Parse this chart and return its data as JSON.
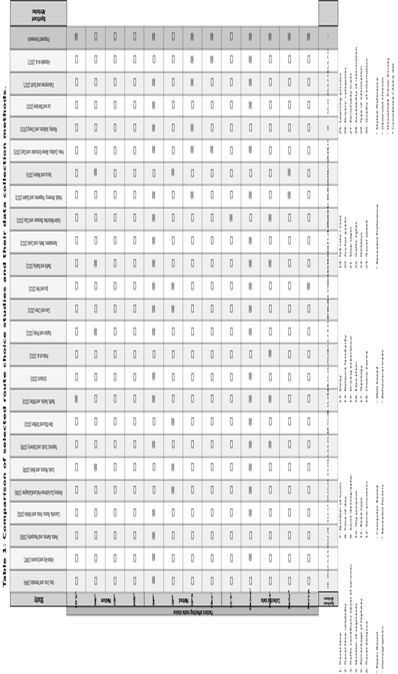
{
  "title": "Table 1: Comparison of selected route choice studies and their data collection methods.",
  "studies": [
    "Iida, Uno, and Yamada (1994)",
    "Abdel-Aty and Jovanis (1997)",
    "Peeta, Ramos, and Pasupathy (2000)",
    "Cascetta, Russo, Viola, and Vitetta (2002)",
    "Parkany,Du,Aultman-Hall,andGallagher (2006)",
    "Cools, Moons, and Wets (2009)",
    "Papinski, Scott, and Doherty (2009)",
    "Ben-Elia and Shiftan (2010)",
    "Tawfik, Rakha, and Miller (2010)",
    "Schlaich (2010)",
    "Prato et al. (2012)",
    "Kaplan and Prato (2012)",
    "Gan and Chen (2013)",
    "Jou and Yeh (2013)",
    "Tawfik and Rakha (2013)",
    "Ramaekers, Wets, and Cools (2013)",
    "Koller-Matschke, Bezauer, and Glas (2013)",
    "Habib, Morency, Trepamer, and Salem (2013)",
    "Vacca and Meloni (2014)",
    "Hess, Quddus, Rieser-Schussler, and Daly (2015)",
    "Manley, Addison, and Cheng (2015)",
    "Lai and Bierlaire (2015)",
    "Dalumpines and Scott (2017)",
    "Alizadeh et al. (2017)",
    "Proposed Framework"
  ],
  "row_headers": [
    "HTSᵇ",
    "PBᵇ",
    "CBᵇ",
    "WBᵇ",
    "RPᵇ",
    "SPᵇ",
    "GPS",
    "Obsᶜ",
    "CCSᶜ",
    "Demoᶜ",
    "Factᶜ",
    "Behrᵇ",
    "Percp"
  ],
  "row_groups": [
    {
      "name": "Medium",
      "rows": [
        0,
        1,
        2,
        3
      ]
    },
    {
      "name": "Method",
      "rows": [
        4,
        5,
        6,
        7
      ]
    },
    {
      "name": "Collected data",
      "rows": [
        8,
        9,
        10,
        11,
        12
      ]
    }
  ],
  "data": [
    [
      0,
      0,
      0,
      0,
      0,
      0,
      0,
      0,
      1,
      0,
      0,
      0,
      0,
      0,
      0,
      0,
      0,
      0,
      0,
      0,
      0,
      0,
      0,
      0,
      1
    ],
    [
      0,
      0,
      0,
      0,
      0,
      1,
      0,
      0,
      0,
      0,
      0,
      1,
      0,
      0,
      1,
      0,
      0,
      0,
      1,
      0,
      0,
      0,
      0,
      0,
      0
    ],
    [
      0,
      0,
      0,
      0,
      0,
      0,
      0,
      0,
      0,
      0,
      0,
      0,
      0,
      0,
      0,
      0,
      0,
      0,
      0,
      0,
      0,
      0,
      0,
      0,
      0
    ],
    [
      0,
      0,
      0,
      0,
      0,
      0,
      0,
      0,
      0,
      0,
      0,
      0,
      0,
      0,
      0,
      0,
      0,
      0,
      0,
      0,
      0,
      0,
      0,
      0,
      0
    ],
    [
      1,
      1,
      1,
      1,
      0,
      0,
      1,
      0,
      1,
      1,
      0,
      1,
      1,
      1,
      1,
      1,
      1,
      1,
      0,
      1,
      1,
      1,
      1,
      0,
      1
    ],
    [
      0,
      0,
      0,
      0,
      1,
      1,
      0,
      1,
      0,
      0,
      0,
      0,
      1,
      1,
      0,
      0,
      0,
      0,
      1,
      0,
      0,
      0,
      0,
      0,
      0
    ],
    [
      0,
      0,
      0,
      0,
      0,
      0,
      0,
      0,
      0,
      0,
      0,
      0,
      0,
      0,
      0,
      0,
      0,
      1,
      0,
      1,
      1,
      0,
      1,
      1,
      1
    ],
    [
      0,
      0,
      0,
      0,
      0,
      0,
      0,
      0,
      0,
      0,
      0,
      0,
      0,
      0,
      0,
      0,
      0,
      0,
      0,
      1,
      0,
      0,
      0,
      1,
      1
    ],
    [
      0,
      0,
      0,
      0,
      0,
      0,
      0,
      0,
      0,
      0,
      0,
      0,
      0,
      0,
      0,
      0,
      1,
      0,
      0,
      0,
      0,
      0,
      0,
      0,
      0
    ],
    [
      0,
      1,
      0,
      1,
      1,
      1,
      1,
      1,
      1,
      1,
      0,
      1,
      1,
      1,
      1,
      1,
      0,
      1,
      0,
      1,
      0,
      1,
      1,
      1,
      1
    ],
    [
      0,
      0,
      0,
      0,
      0,
      0,
      1,
      0,
      1,
      0,
      1,
      0,
      0,
      0,
      1,
      0,
      1,
      0,
      0,
      0,
      0,
      0,
      0,
      0,
      1
    ],
    [
      0,
      0,
      0,
      0,
      0,
      0,
      0,
      0,
      0,
      0,
      0,
      0,
      0,
      0,
      0,
      0,
      0,
      1,
      1,
      0,
      0,
      0,
      0,
      0,
      1
    ],
    [
      0,
      0,
      0,
      0,
      0,
      0,
      0,
      0,
      0,
      0,
      0,
      0,
      0,
      1,
      0,
      0,
      0,
      0,
      0,
      0,
      0,
      0,
      0,
      0,
      1
    ]
  ],
  "sig_attrs": [
    "28, 30",
    "1,2,3,4,5,6",
    "9,12,28",
    "1,12,17",
    "3,9,10,23",
    "1,9,10",
    "1,3,4,6,21,22",
    "1,9,10,25",
    "14,15,25,29",
    "1,6,9,15,24,25",
    "3,28",
    "1,5,6,7,9,13,27",
    "14,15,16",
    "1,5,6,8,10,12,18,19",
    "1,6,9,10,11,26,27",
    "8,9,10,11,28,29",
    "1,18,28,29",
    "1,5,9,12,15,22,23,24",
    "1,5,9,12,15,22,23,24",
    "1,6,11,19",
    "20",
    "5,6,22",
    "4,5,6,7,11",
    "1,5,6,7,11",
    "*"
  ],
  "footnote_cols": [
    [
      "1- Travel time",
      "2- Travel time reliability",
      "3- Traffic conditions (level of service)",
      "4- Number of segments",
      "5- Percentage of highway",
      "6- Travel distance"
    ],
    [
      "ᵇ Paper Based",
      "ᶜ Demographics",
      "7- Number of turns",
      "8- Time of day",
      "9- Socio-demographic",
      "10- Trip purpose",
      "11- Road type",
      "12- Socio-economic"
    ],
    [
      "ᶜ Computer Based",
      "ᵇ Revealed Factors",
      "13- Delay",
      "14- Network familiarity",
      "15- Driving experience",
      "16- Education",
      "17- Topology",
      "18- Choice inertia"
    ],
    [
      "ᵉ Web based",
      "ᵇ Behavioral traits",
      "19- Toll rate / Cost",
      "20- Anchor points",
      "21- Stop signs",
      "22- Traffic lights",
      "23- Holidays",
      "24- Travel speed"
    ],
    [
      "ᵇ Revealed Preference",
      "25- Learning process",
      "26- Drivers' categories",
      "27- Personality traits",
      "28- Availability of information",
      "29- Type of information",
      "30- Quality of information"
    ],
    [
      "ʰ Stated Preference",
      "ᵇ Observed Choices",
      "ʰ Household Travel Survey",
      "* Considered Choice Set"
    ]
  ],
  "bg_color": "#ffffff",
  "check": "☒",
  "empty": "□"
}
